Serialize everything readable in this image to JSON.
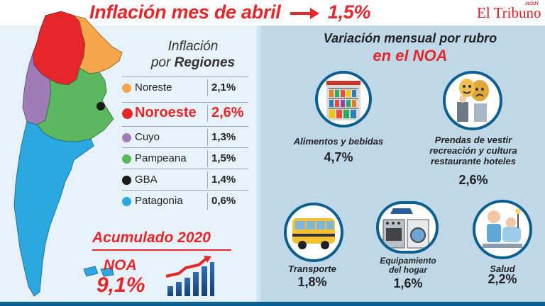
{
  "header": {
    "title_text": "Inflación mes de abril",
    "title_value": "1,5%",
    "brand_name": "El Tribuno",
    "brand_edition": "JUJUY"
  },
  "regions": {
    "title_line1": "Inflación",
    "title_line2_prefix": "por",
    "title_line2_bold": "Regiones",
    "rows": [
      {
        "name": "Noreste",
        "value": "2,1%",
        "color": "#f5a64a"
      },
      {
        "name": "Noroeste",
        "value": "2,6%",
        "color": "#e5262b"
      },
      {
        "name": "Cuyo",
        "value": "1,3%",
        "color": "#a07cb6"
      },
      {
        "name": "Pampeana",
        "value": "1,5%",
        "color": "#5bb85f"
      },
      {
        "name": "GBA",
        "value": "1,4%",
        "color": "#1a1a1a"
      },
      {
        "name": "Patagonia",
        "value": "0,6%",
        "color": "#2aa8df"
      }
    ]
  },
  "accumulated": {
    "label": "Acumulado 2020",
    "region": "NOA",
    "value": "9,1%"
  },
  "categories": {
    "title": "Variación mensual por rubro",
    "subtitle": "en el NOA",
    "items": [
      {
        "label_lines": [
          "Alimentos y bebidas"
        ],
        "value": "4,7%",
        "icon": "grocery-shelf-icon"
      },
      {
        "label_lines": [
          "Prendas de vestir",
          "recreación y cultura",
          "restaurante hoteles"
        ],
        "value": "2,6%",
        "icon": "theater-masks-clothing-icon"
      },
      {
        "label_lines": [
          "Transporte"
        ],
        "value": "1,8%",
        "icon": "bus-icon"
      },
      {
        "label_lines": [
          "Equipamiento",
          "del hogar"
        ],
        "value": "1,6%",
        "icon": "home-appliances-icon"
      },
      {
        "label_lines": [
          "Salud"
        ],
        "value": "2,2%",
        "icon": "dentist-icon"
      }
    ]
  }
}
